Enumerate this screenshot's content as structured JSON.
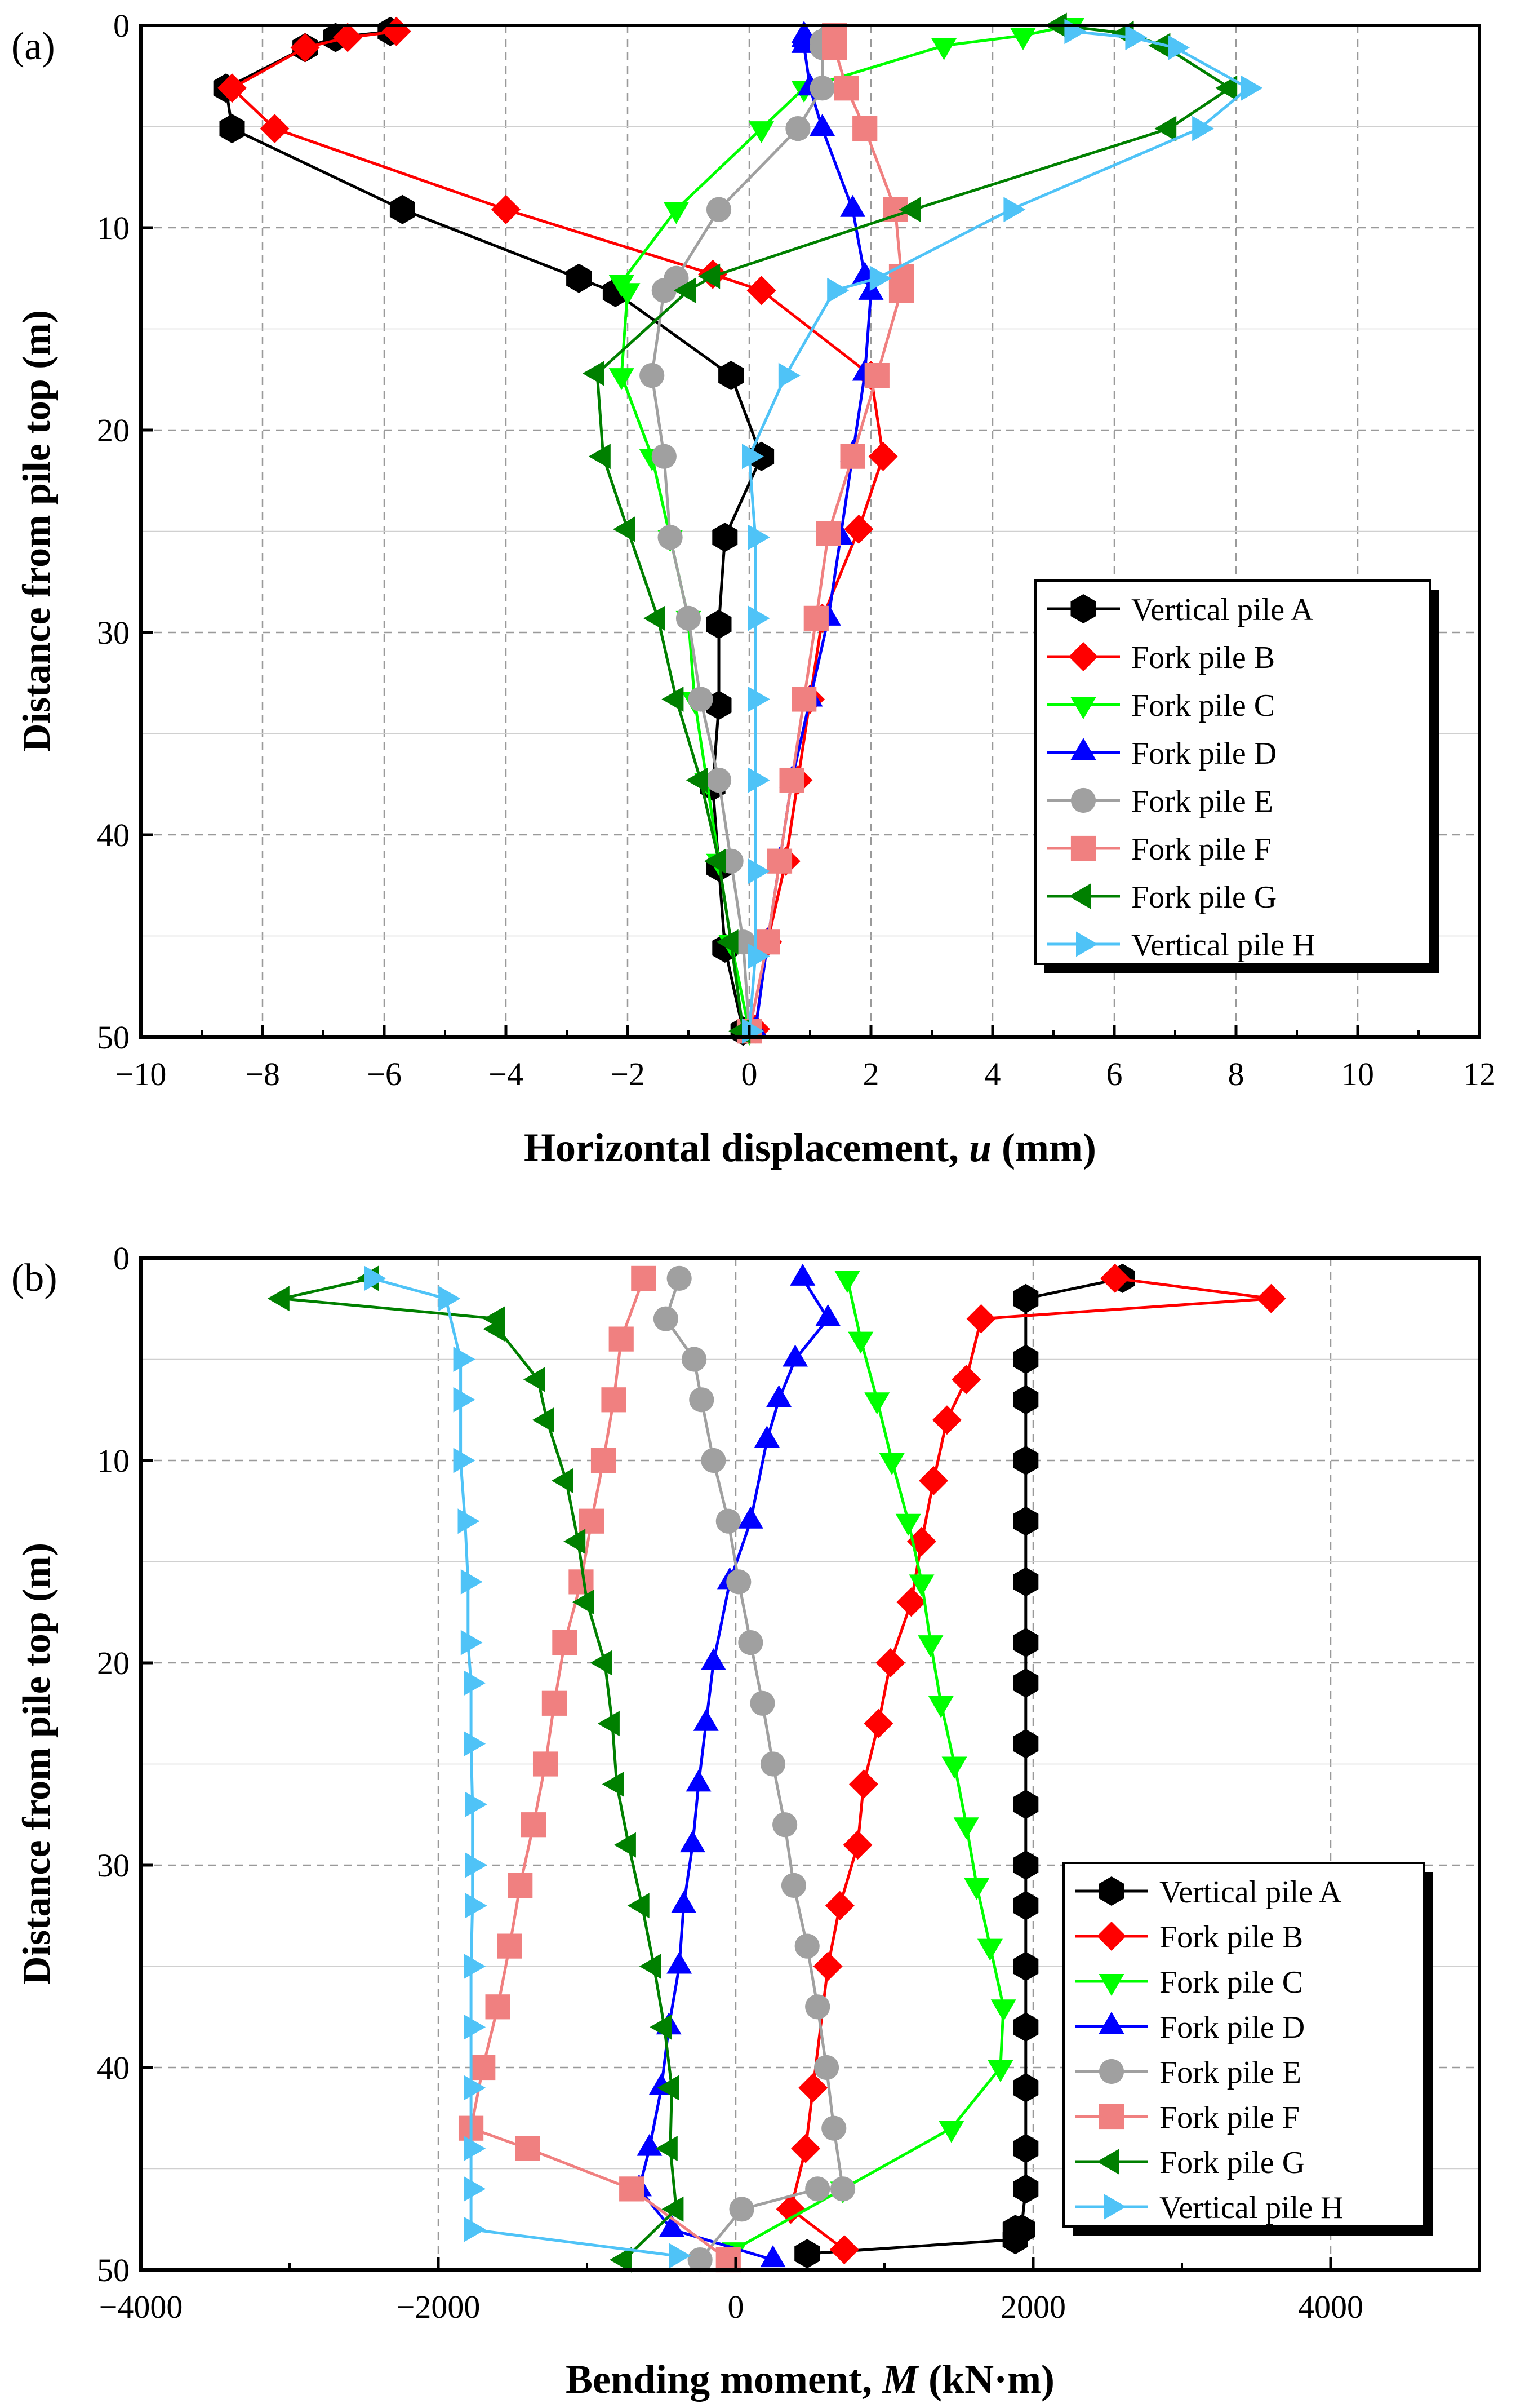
{
  "chart_data": [
    {
      "type": "line",
      "panel_label": "(a)",
      "xlabel_main": "Horizontal displacement, ",
      "xlabel_var": "u",
      "xlabel_unit": " (mm)",
      "ylabel": "Distance from pile top (m)",
      "xlim": [
        -10,
        12
      ],
      "ylim": [
        0,
        50
      ],
      "x_ticks": [
        -10,
        -8,
        -6,
        -4,
        -2,
        0,
        2,
        4,
        6,
        8,
        10,
        12
      ],
      "x_tick_labels": [
        "−10",
        "−8",
        "−6",
        "−4",
        "−2",
        "0",
        "2",
        "4",
        "6",
        "8",
        "10",
        "12"
      ],
      "y_ticks": [
        0,
        10,
        20,
        30,
        40,
        50
      ],
      "y_tick_labels": [
        "0",
        "10",
        "20",
        "30",
        "40",
        "50"
      ],
      "legend": "bottom-right",
      "series": [
        {
          "name": "Vertical pile A",
          "color": "#000000",
          "marker": "hexagon",
          "x": [
            -5.9,
            -6.8,
            -7.3,
            -8.6,
            -8.5,
            -5.7,
            -2.8,
            -2.2,
            -0.3,
            0.2,
            -0.4,
            -0.5,
            -0.5,
            -0.6,
            -0.5,
            -0.4,
            -0.1
          ],
          "y": [
            0.3,
            0.6,
            1.1,
            3.1,
            5.1,
            9.1,
            12.5,
            13.2,
            17.3,
            21.3,
            25.3,
            29.6,
            33.6,
            37.6,
            41.6,
            45.6,
            49.7
          ]
        },
        {
          "name": "Fork pile B",
          "color": "#ff0000",
          "marker": "diamond",
          "x": [
            -5.8,
            -6.6,
            -7.3,
            -8.5,
            -7.8,
            -4.0,
            -0.6,
            0.2,
            2.0,
            2.2,
            1.8,
            1.2,
            1.0,
            0.8,
            0.6,
            0.3,
            0.1
          ],
          "y": [
            0.3,
            0.6,
            1.1,
            3.1,
            5.1,
            9.1,
            12.3,
            13.1,
            17.3,
            21.3,
            24.9,
            29.3,
            33.3,
            37.3,
            41.3,
            45.3,
            49.6
          ]
        },
        {
          "name": "Fork pile C",
          "color": "#00ff00",
          "marker": "triangle-down",
          "x": [
            5.3,
            4.5,
            3.2,
            0.9,
            0.2,
            -1.2,
            -2.1,
            -2.0,
            -2.1,
            -1.6,
            -1.3,
            -1.0,
            -0.9,
            -0.7,
            -0.5,
            -0.3,
            0.0
          ],
          "y": [
            0.0,
            0.5,
            1.0,
            3.1,
            5.1,
            9.1,
            12.7,
            13.1,
            17.3,
            21.3,
            25.3,
            29.3,
            33.3,
            37.3,
            41.3,
            45.3,
            49.7
          ]
        },
        {
          "name": "Fork pile D",
          "color": "#0000ff",
          "marker": "triangle-up",
          "x": [
            0.9,
            0.9,
            0.9,
            1.0,
            1.2,
            1.7,
            1.9,
            2.0,
            1.9,
            1.7,
            1.5,
            1.3,
            1.0,
            0.7,
            0.5,
            0.3,
            0.1
          ],
          "y": [
            0.5,
            0.7,
            1.0,
            3.1,
            5.1,
            9.1,
            12.4,
            13.2,
            17.2,
            21.2,
            25.3,
            29.3,
            33.3,
            37.3,
            41.3,
            45.3,
            49.7
          ]
        },
        {
          "name": "Fork pile E",
          "color": "#a0a0a0",
          "marker": "circle",
          "x": [
            1.3,
            1.2,
            1.2,
            1.2,
            0.8,
            -0.5,
            -1.2,
            -1.4,
            -1.6,
            -1.4,
            -1.3,
            -1.0,
            -0.8,
            -0.5,
            -0.3,
            -0.1,
            0.0
          ],
          "y": [
            0.6,
            0.8,
            1.1,
            3.1,
            5.1,
            9.1,
            12.5,
            13.1,
            17.3,
            21.3,
            25.3,
            29.3,
            33.3,
            37.3,
            41.3,
            45.3,
            49.7
          ]
        },
        {
          "name": "Fork pile F",
          "color": "#f08080",
          "marker": "square",
          "x": [
            1.4,
            1.4,
            1.4,
            1.6,
            1.9,
            2.4,
            2.5,
            2.5,
            2.1,
            1.7,
            1.3,
            1.1,
            0.9,
            0.7,
            0.5,
            0.3,
            0.0
          ],
          "y": [
            0.5,
            0.8,
            1.1,
            3.1,
            5.1,
            9.1,
            12.4,
            13.1,
            17.3,
            21.3,
            25.1,
            29.3,
            33.3,
            37.3,
            41.3,
            45.3,
            49.7
          ]
        },
        {
          "name": "Fork pile G",
          "color": "#008000",
          "marker": "triangle-left",
          "x": [
            5.1,
            6.2,
            6.8,
            7.9,
            6.9,
            2.7,
            -0.6,
            -1.0,
            -2.5,
            -2.4,
            -2.0,
            -1.5,
            -1.2,
            -0.8,
            -0.5,
            -0.3,
            -0.1
          ],
          "y": [
            0.0,
            0.4,
            1.0,
            3.1,
            5.1,
            9.1,
            12.4,
            13.1,
            17.2,
            21.3,
            24.9,
            29.3,
            33.3,
            37.3,
            41.3,
            45.3,
            49.7
          ]
        },
        {
          "name": "Vertical pile H",
          "color": "#4fc3f7",
          "marker": "triangle-right",
          "x": [
            5.3,
            6.3,
            7.0,
            8.2,
            7.4,
            4.3,
            2.1,
            1.4,
            0.6,
            0.0,
            0.1,
            0.1,
            0.1,
            0.1,
            0.1,
            0.1,
            0.0
          ],
          "y": [
            0.3,
            0.6,
            1.1,
            3.1,
            5.1,
            9.1,
            12.5,
            13.1,
            17.3,
            21.3,
            25.3,
            29.3,
            33.3,
            37.3,
            41.8,
            46.0,
            49.7
          ]
        }
      ]
    },
    {
      "type": "line",
      "panel_label": "(b)",
      "xlabel_main": "Bending moment, ",
      "xlabel_var": "M",
      "xlabel_unit": " (kN·m)",
      "ylabel": "Distance from pile top (m)",
      "xlim": [
        -4000,
        5000
      ],
      "ylim": [
        0,
        50
      ],
      "x_ticks": [
        -4000,
        -2000,
        0,
        2000,
        4000
      ],
      "x_tick_labels": [
        "−4000",
        "−2000",
        "0",
        "2000",
        "4000"
      ],
      "y_ticks": [
        0,
        10,
        20,
        30,
        40,
        50
      ],
      "y_tick_labels": [
        "0",
        "10",
        "20",
        "30",
        "40",
        "50"
      ],
      "legend": "bottom-right",
      "series": [
        {
          "name": "Vertical pile A",
          "color": "#000000",
          "marker": "hexagon",
          "x": [
            2600,
            1950,
            1950,
            1950,
            1950,
            1950,
            1950,
            1950,
            1950,
            1950,
            1950,
            1950,
            1950,
            1950,
            1950,
            1950,
            1950,
            1950,
            1920,
            1930,
            1920,
            1920,
            1880,
            1880,
            1880,
            480
          ],
          "y": [
            1,
            2,
            5,
            7,
            10,
            13,
            16,
            19,
            21,
            24,
            27,
            30,
            32,
            35,
            38,
            41,
            44,
            46,
            48,
            48,
            48,
            48,
            48,
            48.5,
            48.5,
            49.2
          ]
        },
        {
          "name": "Fork pile B",
          "color": "#ff0000",
          "marker": "diamond",
          "x": [
            2550,
            3600,
            1650,
            1550,
            1420,
            1330,
            1250,
            1180,
            1040,
            960,
            860,
            820,
            700,
            620,
            520,
            470,
            370,
            730
          ],
          "y": [
            1,
            2,
            3,
            6,
            8,
            11,
            14,
            17,
            20,
            23,
            26,
            29,
            32,
            35,
            41,
            44,
            47,
            49
          ]
        },
        {
          "name": "Fork pile C",
          "color": "#00ff00",
          "marker": "triangle-down",
          "x": [
            750,
            840,
            950,
            1050,
            1160,
            1250,
            1310,
            1380,
            1470,
            1550,
            1620,
            1710,
            1800,
            1780,
            1450,
            720,
            -10
          ],
          "y": [
            1,
            4,
            7,
            10,
            13,
            16,
            19,
            22,
            25,
            28,
            31,
            34,
            37,
            40,
            43,
            46,
            49
          ]
        },
        {
          "name": "Fork pile D",
          "color": "#0000ff",
          "marker": "triangle-up",
          "x": [
            450,
            620,
            400,
            290,
            210,
            100,
            -40,
            -150,
            -200,
            -250,
            -290,
            -350,
            -380,
            -450,
            -500,
            -580,
            -650,
            -430,
            250
          ],
          "y": [
            1,
            3,
            5,
            7,
            9,
            13,
            16,
            20,
            23,
            26,
            29,
            32,
            35,
            38,
            41,
            44,
            46,
            48,
            49.5
          ]
        },
        {
          "name": "Fork pile E",
          "color": "#a0a0a0",
          "marker": "circle",
          "x": [
            -380,
            -470,
            -280,
            -230,
            -150,
            -50,
            20,
            100,
            180,
            250,
            330,
            390,
            480,
            550,
            610,
            660,
            720,
            550,
            40,
            -240
          ],
          "y": [
            1,
            3,
            5,
            7,
            10,
            13,
            16,
            19,
            22,
            25,
            28,
            31,
            34,
            37,
            40,
            43,
            46,
            46,
            47,
            49.5
          ]
        },
        {
          "name": "Fork pile F",
          "color": "#f08080",
          "marker": "square",
          "x": [
            -620,
            -770,
            -820,
            -890,
            -970,
            -1040,
            -1150,
            -1220,
            -1280,
            -1360,
            -1450,
            -1520,
            -1600,
            -1700,
            -1780,
            -1400,
            -700,
            -50
          ],
          "y": [
            1,
            4,
            7,
            10,
            13,
            16,
            19,
            22,
            25,
            28,
            31,
            34,
            37,
            40,
            43,
            44,
            46,
            49.5
          ]
        },
        {
          "name": "Fork pile G",
          "color": "#008000",
          "marker": "triangle-left",
          "x": [
            -2450,
            -3050,
            -1600,
            -1600,
            -1330,
            -1270,
            -1140,
            -1060,
            -1000,
            -880,
            -830,
            -800,
            -720,
            -630,
            -550,
            -480,
            -430,
            -440,
            -400,
            -750
          ],
          "y": [
            1,
            2,
            3,
            3.5,
            6,
            8,
            11,
            14,
            17,
            20,
            23,
            26,
            29,
            32,
            35,
            38,
            41,
            44,
            47,
            49.5
          ]
        },
        {
          "name": "Vertical pile H",
          "color": "#4fc3f7",
          "marker": "triangle-right",
          "x": [
            -2450,
            -1950,
            -1850,
            -1850,
            -1850,
            -1820,
            -1800,
            -1800,
            -1780,
            -1780,
            -1770,
            -1770,
            -1770,
            -1780,
            -1780,
            -1780,
            -1780,
            -1780,
            -1780,
            -1780,
            -1780,
            -400
          ],
          "y": [
            1,
            2,
            5,
            7,
            10,
            13,
            16,
            19,
            21,
            24,
            27,
            30,
            32,
            35,
            38,
            41,
            44,
            46,
            48,
            48,
            48,
            49.3
          ]
        }
      ]
    }
  ]
}
